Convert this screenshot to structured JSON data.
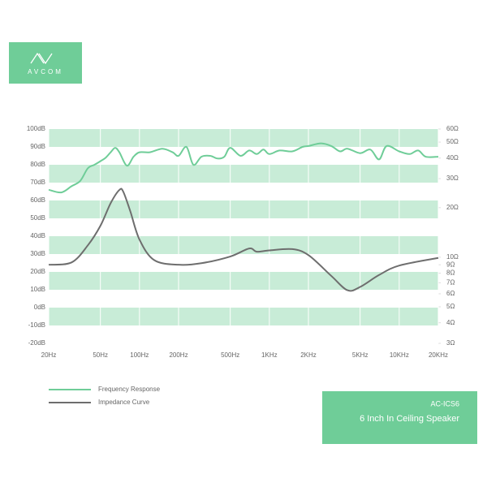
{
  "brand": "AVCOM",
  "model": "AC-ICS6",
  "product_name": "6 Inch In Ceiling Speaker",
  "chart_data": {
    "type": "line",
    "xscale": "log",
    "y2scale": "log",
    "bands": true,
    "band_color": "#c8ecd7",
    "xlim": [
      20,
      20000
    ],
    "xticks": [
      {
        "value": 20,
        "label": "20Hz"
      },
      {
        "value": 50,
        "label": "50Hz"
      },
      {
        "value": 100,
        "label": "100Hz"
      },
      {
        "value": 200,
        "label": "200Hz"
      },
      {
        "value": 500,
        "label": "500Hz"
      },
      {
        "value": 1000,
        "label": "1KHz"
      },
      {
        "value": 2000,
        "label": "2KHz"
      },
      {
        "value": 5000,
        "label": "5KHz"
      },
      {
        "value": 10000,
        "label": "10KHz"
      },
      {
        "value": 20000,
        "label": "20KHz"
      }
    ],
    "ylim": [
      -20,
      100
    ],
    "yticks": [
      {
        "value": 100,
        "label": "100dB"
      },
      {
        "value": 90,
        "label": "90dB"
      },
      {
        "value": 80,
        "label": "80dB"
      },
      {
        "value": 70,
        "label": "70dB"
      },
      {
        "value": 60,
        "label": "60dB"
      },
      {
        "value": 50,
        "label": "50dB"
      },
      {
        "value": 40,
        "label": "40dB"
      },
      {
        "value": 30,
        "label": "30dB"
      },
      {
        "value": 20,
        "label": "20dB"
      },
      {
        "value": 10,
        "label": "10dB"
      },
      {
        "value": 0,
        "label": "0dB"
      },
      {
        "value": -10,
        "label": "-10dB"
      },
      {
        "value": -20,
        "label": "-20dB"
      }
    ],
    "y2lim": [
      3,
      60
    ],
    "y2ticks": [
      {
        "value": 60,
        "label": "60Ω"
      },
      {
        "value": 50,
        "label": "50Ω"
      },
      {
        "value": 40,
        "label": "40Ω"
      },
      {
        "value": 30,
        "label": "30Ω"
      },
      {
        "value": 20,
        "label": "20Ω"
      },
      {
        "value": 10,
        "label": "10Ω"
      },
      {
        "value": 9,
        "label": "9Ω"
      },
      {
        "value": 8,
        "label": "8Ω"
      },
      {
        "value": 7,
        "label": "7Ω"
      },
      {
        "value": 6,
        "label": "6Ω"
      },
      {
        "value": 5,
        "label": "5Ω"
      },
      {
        "value": 4,
        "label": "4Ω"
      },
      {
        "value": 3,
        "label": "3Ω"
      }
    ],
    "series": [
      {
        "name": "Frequency Response",
        "color": "#6fcd98",
        "x": [
          20,
          25,
          30,
          35,
          40,
          45,
          50,
          55,
          60,
          65,
          70,
          80,
          90,
          100,
          120,
          150,
          180,
          200,
          230,
          260,
          300,
          350,
          400,
          450,
          500,
          600,
          700,
          800,
          900,
          1000,
          1200,
          1500,
          1800,
          2000,
          2500,
          3000,
          3500,
          4000,
          5000,
          6000,
          7000,
          8000,
          10000,
          12000,
          14000,
          16000,
          20000
        ],
        "values": [
          66,
          64.5,
          68,
          71,
          78,
          80,
          82,
          84,
          87,
          89.5,
          87,
          79.5,
          84.5,
          87,
          87,
          89,
          87,
          85,
          90,
          80,
          84.5,
          85,
          83.5,
          84.5,
          89.5,
          85,
          88,
          86,
          88.5,
          86,
          88,
          87.5,
          90,
          90.5,
          92,
          90.5,
          87.5,
          89,
          86.5,
          88.5,
          83,
          90.5,
          87.5,
          86,
          88,
          84.5,
          84.5
        ]
      },
      {
        "name": "Impedance Curve",
        "color": "#6e6e6e",
        "axis": "y2",
        "x": [
          20,
          30,
          40,
          50,
          60,
          70,
          75,
          85,
          100,
          130,
          200,
          300,
          500,
          700,
          800,
          1000,
          1500,
          2000,
          3000,
          4000,
          5000,
          7000,
          10000,
          20000
        ],
        "values": [
          9,
          9.3,
          11.8,
          15.5,
          21.3,
          25.6,
          25,
          19,
          12.8,
          9.6,
          9,
          9.2,
          10.1,
          11.3,
          10.8,
          11,
          11.2,
          10.3,
          7.7,
          6.3,
          6.6,
          7.8,
          8.9,
          9.9
        ]
      }
    ]
  }
}
